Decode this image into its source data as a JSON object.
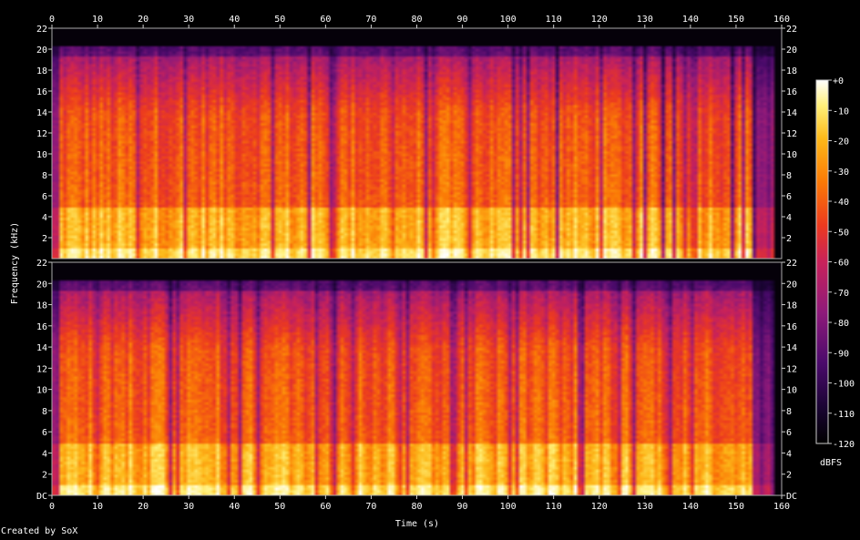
{
  "app": {
    "credit": "Created by SoX"
  },
  "chart_data": {
    "type": "heatmap",
    "title": "",
    "xlabel": "Time (s)",
    "ylabel": "Frequency (kHz)",
    "xlim": [
      0,
      160
    ],
    "x_ticks": [
      "0",
      "10",
      "20",
      "30",
      "40",
      "50",
      "60",
      "70",
      "80",
      "90",
      "100",
      "110",
      "120",
      "130",
      "140",
      "150",
      "160"
    ],
    "channels": [
      {
        "name": "",
        "ylim": [
          0,
          22
        ],
        "y_ticks": [
          "22",
          "20",
          "18",
          "16",
          "14",
          "12",
          "10",
          "8",
          "6",
          "4",
          "2"
        ]
      },
      {
        "name": "",
        "ylim": [
          0,
          22
        ],
        "y_ticks": [
          "22",
          "20",
          "18",
          "16",
          "14",
          "12",
          "10",
          "8",
          "6",
          "4",
          "2",
          "DC"
        ]
      }
    ],
    "colorbar": {
      "label": "dBFS",
      "range": [
        -120,
        0
      ],
      "ticks": [
        "+0",
        "-10",
        "-20",
        "-30",
        "-40",
        "-50",
        "-60",
        "-70",
        "-80",
        "-90",
        "-100",
        "-110",
        "-120"
      ],
      "colormap": [
        "#000000",
        "#1a0433",
        "#4a0a6b",
        "#8e1a7a",
        "#c8225a",
        "#ec3a1f",
        "#fb7a06",
        "#fdb91a",
        "#fff07a",
        "#ffffff"
      ]
    },
    "content_cutoff_khz": 20,
    "audio_duration_s": 158.5,
    "grid": false,
    "legend": "right"
  }
}
